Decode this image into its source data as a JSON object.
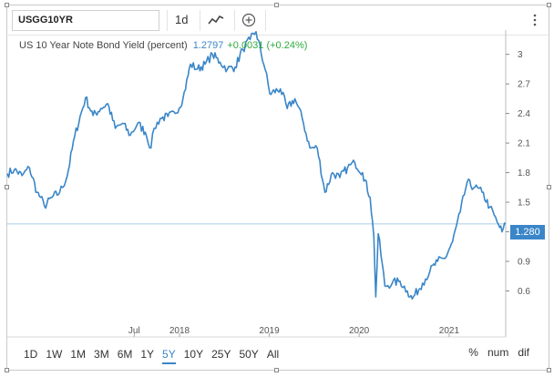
{
  "toolbar": {
    "symbol": "USGG10YR",
    "interval": "1d",
    "icons": [
      "line-chart-icon",
      "plus-circle-icon",
      "more-vertical-icon"
    ]
  },
  "legend": {
    "name": "US 10 Year Note Bond Yield (percent)",
    "last": "1.2797",
    "change": "+0.0031 (+0.24%)"
  },
  "last_price_tag": "1.280",
  "range_buttons": [
    "1D",
    "1W",
    "1M",
    "3M",
    "6M",
    "1Y",
    "5Y",
    "10Y",
    "25Y",
    "50Y",
    "All"
  ],
  "active_range": "5Y",
  "mode_buttons": [
    "%",
    "num",
    "dif"
  ],
  "colors": {
    "line": "#3a86c8",
    "change_positive": "#2eaa3e",
    "last_line": "#a9cbe8"
  },
  "chart_data": {
    "type": "line",
    "title": "US 10 Year Note Bond Yield (percent)",
    "series": [
      {
        "name": "US 10 Year Note Bond Yield (percent)",
        "x": [
          "2016-02-01",
          "2016-03-01",
          "2016-04-01",
          "2016-05-01",
          "2016-06-01",
          "2016-06-15",
          "2016-07-01",
          "2016-08-01",
          "2016-09-01",
          "2016-10-01",
          "2016-11-01",
          "2016-12-15",
          "2017-01-15",
          "2017-02-15",
          "2017-03-15",
          "2017-04-15",
          "2017-05-15",
          "2017-06-15",
          "2017-07-15",
          "2017-08-15",
          "2017-09-07",
          "2017-09-20",
          "2017-10-15",
          "2017-11-15",
          "2017-12-15",
          "2018-01-15",
          "2018-02-15",
          "2018-03-15",
          "2018-04-15",
          "2018-05-15",
          "2018-06-15",
          "2018-07-15",
          "2018-08-15",
          "2018-09-15",
          "2018-10-15",
          "2018-11-08",
          "2018-12-15",
          "2019-01-03",
          "2019-02-15",
          "2019-03-15",
          "2019-04-15",
          "2019-05-15",
          "2019-06-15",
          "2019-07-15",
          "2019-08-15",
          "2019-09-15",
          "2019-10-15",
          "2019-11-15",
          "2019-12-15",
          "2020-01-15",
          "2020-02-15",
          "2020-03-01",
          "2020-03-09",
          "2020-03-19",
          "2020-04-15",
          "2020-05-15",
          "2020-06-15",
          "2020-07-15",
          "2020-08-04",
          "2020-09-15",
          "2020-10-15",
          "2020-11-15",
          "2020-12-15",
          "2021-01-15",
          "2021-02-15",
          "2021-03-15",
          "2021-04-15",
          "2021-05-15",
          "2021-06-15",
          "2021-07-15",
          "2021-08-04",
          "2021-08-19"
        ],
        "values": [
          1.79,
          1.83,
          1.77,
          1.85,
          1.6,
          1.55,
          1.46,
          1.55,
          1.6,
          1.76,
          2.17,
          2.56,
          2.38,
          2.45,
          2.5,
          2.25,
          2.3,
          2.18,
          2.3,
          2.21,
          2.05,
          2.25,
          2.35,
          2.37,
          2.4,
          2.55,
          2.9,
          2.85,
          2.9,
          3.0,
          2.92,
          2.85,
          2.87,
          3.05,
          3.15,
          3.23,
          2.85,
          2.6,
          2.65,
          2.45,
          2.55,
          2.35,
          2.05,
          2.05,
          1.6,
          1.8,
          1.75,
          1.85,
          1.9,
          1.8,
          1.55,
          1.15,
          0.54,
          1.18,
          0.65,
          0.68,
          0.7,
          0.6,
          0.52,
          0.68,
          0.8,
          0.9,
          0.93,
          1.1,
          1.4,
          1.7,
          1.65,
          1.6,
          1.45,
          1.3,
          1.2,
          1.28
        ]
      }
    ],
    "xticks": [
      "Jul",
      "2018",
      "2019",
      "2020",
      "2021"
    ],
    "yticks": [
      "0.6",
      "0.9",
      "1.2",
      "1.5",
      "1.8",
      "2.1",
      "2.4",
      "2.7",
      "3"
    ],
    "ylim": [
      0.3,
      3.2
    ],
    "grid": false,
    "last_value": 1.28
  }
}
